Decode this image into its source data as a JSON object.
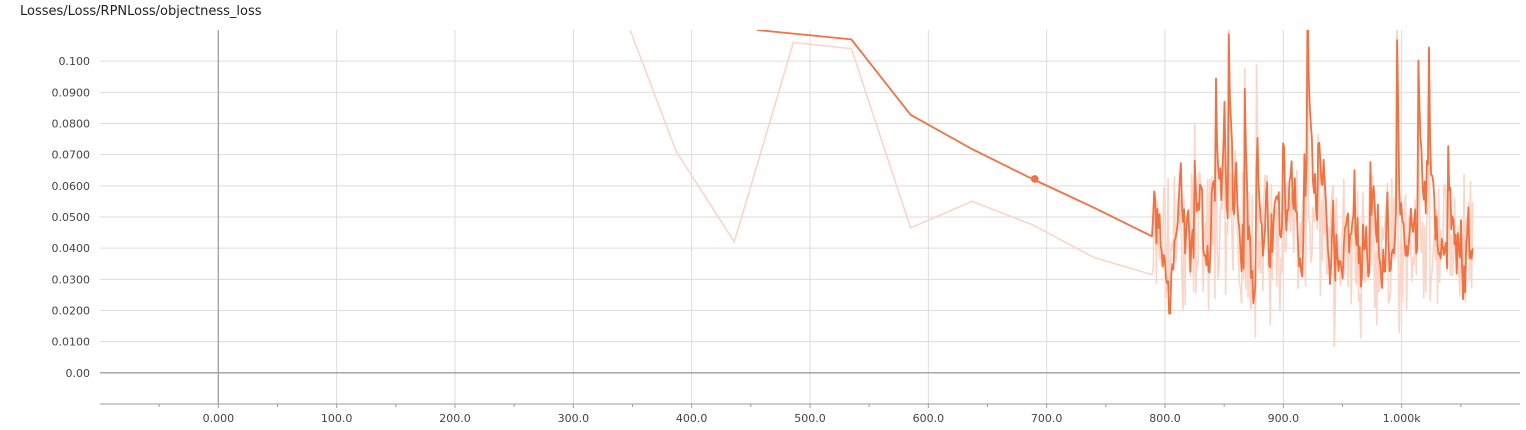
{
  "chart_data": {
    "type": "line",
    "title": "Losses/Loss/RPNLoss/objectness_loss",
    "xlabel": "",
    "ylabel": "",
    "xlim": [
      -100,
      1100
    ],
    "ylim": [
      -0.01,
      0.11
    ],
    "x_ticks": [
      {
        "value": 0,
        "label": "0.000"
      },
      {
        "value": 100,
        "label": "100.0"
      },
      {
        "value": 200,
        "label": "200.0"
      },
      {
        "value": 300,
        "label": "300.0"
      },
      {
        "value": 400,
        "label": "400.0"
      },
      {
        "value": 500,
        "label": "500.0"
      },
      {
        "value": 600,
        "label": "600.0"
      },
      {
        "value": 700,
        "label": "700.0"
      },
      {
        "value": 800,
        "label": "800.0"
      },
      {
        "value": 900,
        "label": "900.0"
      },
      {
        "value": 1000,
        "label": "1.000k"
      }
    ],
    "y_ticks": [
      {
        "value": 0.0,
        "label": "0.00"
      },
      {
        "value": 0.01,
        "label": "0.0100"
      },
      {
        "value": 0.02,
        "label": "0.0200"
      },
      {
        "value": 0.03,
        "label": "0.0300"
      },
      {
        "value": 0.04,
        "label": "0.0400"
      },
      {
        "value": 0.05,
        "label": "0.0500"
      },
      {
        "value": 0.06,
        "label": "0.0600"
      },
      {
        "value": 0.07,
        "label": "0.0700"
      },
      {
        "value": 0.08,
        "label": "0.0800"
      },
      {
        "value": 0.09,
        "label": "0.0900"
      },
      {
        "value": 0.1,
        "label": "0.100"
      }
    ],
    "grid": true,
    "smoothing_applied": true,
    "colors": {
      "smoothed": "#f4703f",
      "raw": "#fbd5c8",
      "grid": "#dddddd",
      "zero_axis": "#9e9e9e",
      "text": "#444444"
    },
    "series": [
      {
        "role": "raw",
        "x": [
          340,
          387,
          436,
          486,
          535,
          585,
          637,
          688,
          740,
          789
        ],
        "y": [
          0.118,
          0.071,
          0.042,
          0.106,
          0.104,
          0.0465,
          0.055,
          0.0475,
          0.037,
          0.0315
        ]
      },
      {
        "role": "smoothed",
        "x": [
          455,
          535,
          585,
          637,
          688,
          740,
          789
        ],
        "y": [
          0.11,
          0.107,
          0.0828,
          0.0718,
          0.0622,
          0.053,
          0.0438
        ]
      }
    ],
    "highlighted_point": {
      "x": 690,
      "y": 0.0622
    },
    "noisy_region": {
      "x_start": 790,
      "x_end": 1060,
      "y_min_raw": 0.008,
      "y_max_raw": 0.118,
      "y_min_smoothed": 0.019,
      "y_max_smoothed": 0.118
    }
  }
}
